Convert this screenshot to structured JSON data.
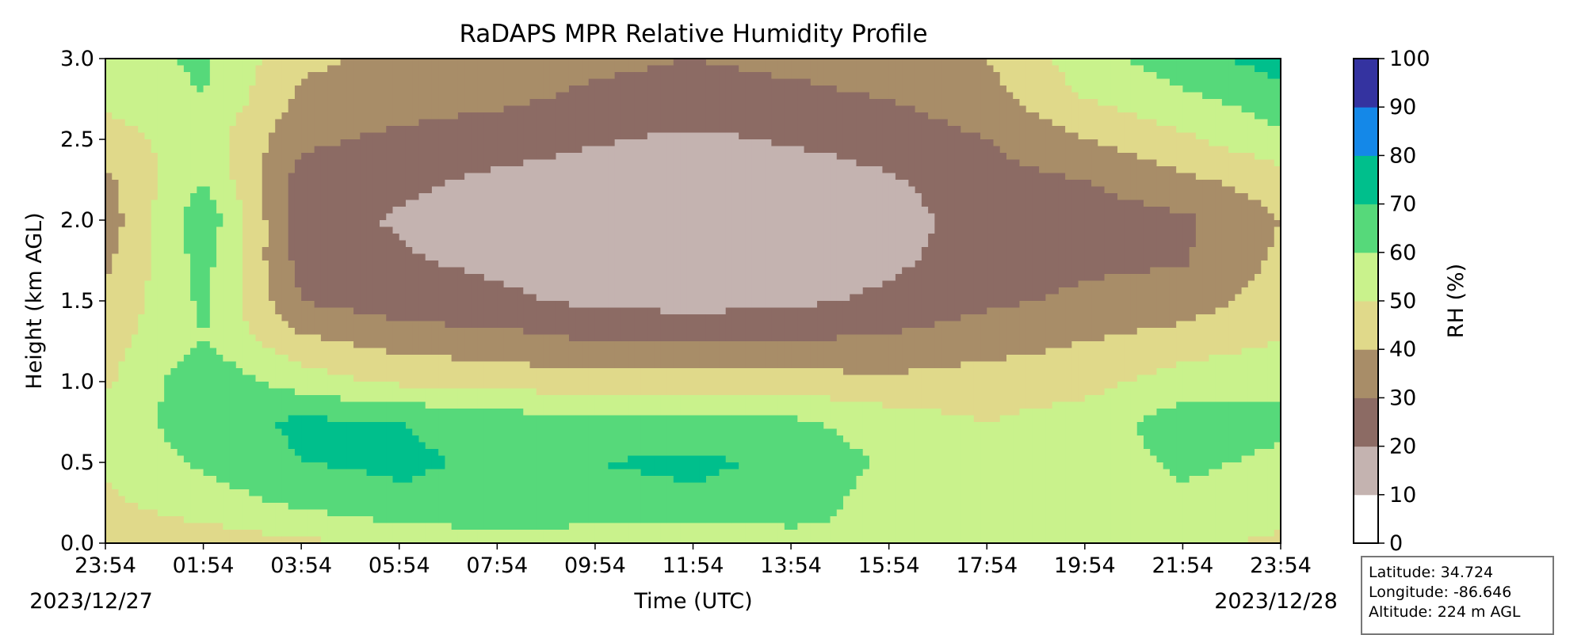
{
  "chart_data": {
    "type": "heatmap",
    "title": "RaDAPS MPR Relative Humidity Profile",
    "xlabel": "Time (UTC)",
    "ylabel": "Height (km AGL)",
    "x_tick_labels": [
      "23:54",
      "01:54",
      "03:54",
      "05:54",
      "07:54",
      "09:54",
      "11:54",
      "13:54",
      "15:54",
      "17:54",
      "19:54",
      "21:54",
      "23:54"
    ],
    "x_date_labels": {
      "start": "2023/12/27",
      "end": "2023/12/28"
    },
    "y_ticks": [
      0.0,
      0.5,
      1.0,
      1.5,
      2.0,
      2.5,
      3.0
    ],
    "y_tick_labels": [
      "0.0",
      "0.5",
      "1.0",
      "1.5",
      "2.0",
      "2.5",
      "3.0"
    ],
    "ylim": [
      0.0,
      3.0
    ],
    "colorbar": {
      "label": "RH (%)",
      "ticks": [
        0,
        10,
        20,
        30,
        40,
        50,
        60,
        70,
        80,
        90,
        100
      ],
      "tick_labels": [
        "0",
        "10",
        "20",
        "30",
        "40",
        "50",
        "60",
        "70",
        "80",
        "90",
        "100"
      ],
      "colors": [
        "#ffffff",
        "#c4b3b0",
        "#8c6b64",
        "#a88d68",
        "#e0d98a",
        "#c9f28c",
        "#56d97a",
        "#00bf8c",
        "#1488e8",
        "#3433a0"
      ]
    },
    "time_axis_hours": [
      0,
      2,
      4,
      6,
      8,
      10,
      12,
      14,
      16,
      18,
      20,
      22,
      24
    ],
    "rh_grid_heights_km": [
      0.0,
      0.25,
      0.5,
      0.75,
      1.0,
      1.25,
      1.5,
      1.75,
      2.0,
      2.25,
      2.5,
      2.75,
      3.0
    ],
    "rh_grid": [
      [
        45,
        45,
        48,
        52,
        58,
        55,
        50,
        56,
        60,
        58,
        52,
        52,
        48
      ],
      [
        48,
        55,
        62,
        68,
        66,
        66,
        68,
        66,
        55,
        55,
        55,
        58,
        55
      ],
      [
        52,
        62,
        70,
        72,
        68,
        70,
        72,
        68,
        58,
        52,
        54,
        62,
        58
      ],
      [
        55,
        65,
        72,
        70,
        66,
        62,
        64,
        62,
        55,
        50,
        55,
        65,
        62
      ],
      [
        48,
        68,
        55,
        48,
        46,
        44,
        45,
        44,
        42,
        44,
        46,
        55,
        58
      ],
      [
        46,
        60,
        42,
        36,
        34,
        30,
        30,
        30,
        32,
        36,
        40,
        44,
        50
      ],
      [
        42,
        62,
        30,
        24,
        22,
        18,
        16,
        18,
        22,
        28,
        32,
        35,
        45
      ],
      [
        38,
        64,
        26,
        21,
        18,
        14,
        12,
        14,
        18,
        25,
        28,
        29,
        42
      ],
      [
        34,
        68,
        24,
        19,
        15,
        13,
        12,
        13,
        16,
        24,
        25,
        28,
        40
      ],
      [
        38,
        60,
        26,
        22,
        18,
        15,
        13,
        15,
        19,
        26,
        30,
        38,
        45
      ],
      [
        45,
        56,
        32,
        28,
        25,
        21,
        18,
        21,
        24,
        30,
        40,
        48,
        58
      ],
      [
        52,
        60,
        38,
        34,
        32,
        28,
        26,
        28,
        30,
        36,
        50,
        58,
        65
      ],
      [
        55,
        62,
        42,
        38,
        35,
        32,
        30,
        32,
        34,
        40,
        56,
        66,
        75
      ]
    ]
  },
  "station_info": {
    "latitude": "Latitude: 34.724",
    "longitude": "Longitude: -86.646",
    "altitude": "Altitude: 224 m AGL"
  }
}
